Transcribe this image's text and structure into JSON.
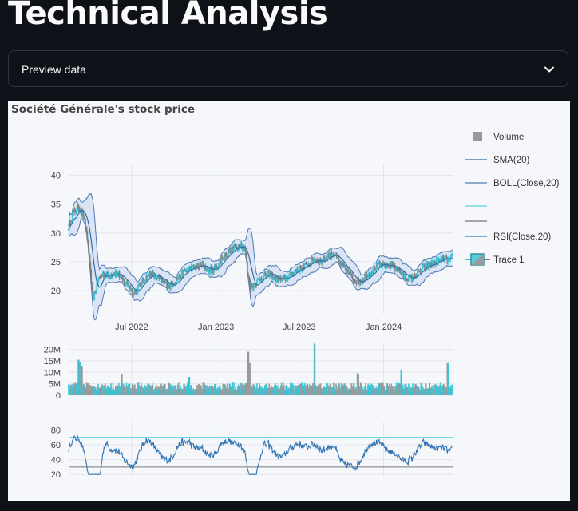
{
  "page": {
    "title": "Technical Analysis",
    "expander": {
      "label": "Preview data",
      "icon": "chevron-down-icon"
    }
  },
  "chart_data": {
    "type": "line",
    "title": "Société Générale's stock price",
    "legend_position": "right",
    "legend": [
      "Volume",
      "SMA(20)",
      "BOLL(Close,20)",
      "",
      "",
      "RSI(Close,20)",
      "Trace 1"
    ],
    "colors": {
      "candles": "#3ec5d6",
      "sma": "#2f6fa8",
      "bollinger_band": "#4f7ab5",
      "bollinger_fill": "#d4def2",
      "volume": "#999999",
      "rsi": "#2f74b5",
      "rsi_upper": "#57d4e3",
      "rsi_lower": "#777777"
    },
    "price_panel": {
      "x_ticks": [
        "Jul 2022",
        "Jan 2023",
        "Jul 2023",
        "Jan 2024"
      ],
      "y_ticks": [
        20,
        25,
        30,
        35,
        40
      ],
      "ylim": [
        16,
        42
      ],
      "close_points": [
        {
          "date": "2022-02-14",
          "value": 31.0
        },
        {
          "date": "2022-02-25",
          "value": 33.5
        },
        {
          "date": "2022-03-08",
          "value": 34.5
        },
        {
          "date": "2022-03-17",
          "value": 33.2
        },
        {
          "date": "2022-03-25",
          "value": 30.5
        },
        {
          "date": "2022-04-01",
          "value": 24.5
        },
        {
          "date": "2022-04-08",
          "value": 18.5
        },
        {
          "date": "2022-04-20",
          "value": 22.0
        },
        {
          "date": "2022-05-02",
          "value": 23.0
        },
        {
          "date": "2022-05-13",
          "value": 22.5
        },
        {
          "date": "2022-05-24",
          "value": 23.2
        },
        {
          "date": "2022-06-03",
          "value": 22.8
        },
        {
          "date": "2022-06-14",
          "value": 21.5
        },
        {
          "date": "2022-06-24",
          "value": 21.0
        },
        {
          "date": "2022-07-06",
          "value": 19.5
        },
        {
          "date": "2022-07-15",
          "value": 20.5
        },
        {
          "date": "2022-07-29",
          "value": 22.0
        },
        {
          "date": "2022-08-12",
          "value": 23.0
        },
        {
          "date": "2022-08-26",
          "value": 22.2
        },
        {
          "date": "2022-09-09",
          "value": 21.5
        },
        {
          "date": "2022-09-23",
          "value": 20.8
        },
        {
          "date": "2022-10-07",
          "value": 22.0
        },
        {
          "date": "2022-10-21",
          "value": 23.0
        },
        {
          "date": "2022-11-04",
          "value": 23.8
        },
        {
          "date": "2022-11-18",
          "value": 24.0
        },
        {
          "date": "2022-12-02",
          "value": 24.5
        },
        {
          "date": "2022-12-16",
          "value": 23.5
        },
        {
          "date": "2023-01-02",
          "value": 24.0
        },
        {
          "date": "2023-01-13",
          "value": 25.5
        },
        {
          "date": "2023-01-27",
          "value": 26.5
        },
        {
          "date": "2023-02-10",
          "value": 27.5
        },
        {
          "date": "2023-02-24",
          "value": 28.0
        },
        {
          "date": "2023-03-06",
          "value": 27.0
        },
        {
          "date": "2023-03-10",
          "value": 23.5
        },
        {
          "date": "2023-03-17",
          "value": 20.5
        },
        {
          "date": "2023-03-31",
          "value": 21.5
        },
        {
          "date": "2023-04-14",
          "value": 22.5
        },
        {
          "date": "2023-04-28",
          "value": 23.0
        },
        {
          "date": "2023-05-12",
          "value": 22.0
        },
        {
          "date": "2023-05-26",
          "value": 21.8
        },
        {
          "date": "2023-06-09",
          "value": 22.5
        },
        {
          "date": "2023-06-23",
          "value": 23.5
        },
        {
          "date": "2023-07-07",
          "value": 24.0
        },
        {
          "date": "2023-07-21",
          "value": 24.5
        },
        {
          "date": "2023-08-04",
          "value": 25.5
        },
        {
          "date": "2023-08-18",
          "value": 25.0
        },
        {
          "date": "2023-09-01",
          "value": 26.0
        },
        {
          "date": "2023-09-15",
          "value": 26.5
        },
        {
          "date": "2023-09-29",
          "value": 24.5
        },
        {
          "date": "2023-10-13",
          "value": 23.5
        },
        {
          "date": "2023-10-27",
          "value": 22.0
        },
        {
          "date": "2023-11-10",
          "value": 21.5
        },
        {
          "date": "2023-11-24",
          "value": 22.5
        },
        {
          "date": "2023-12-08",
          "value": 23.5
        },
        {
          "date": "2023-12-22",
          "value": 24.5
        },
        {
          "date": "2024-01-05",
          "value": 24.2
        },
        {
          "date": "2024-01-19",
          "value": 24.5
        },
        {
          "date": "2024-02-02",
          "value": 23.5
        },
        {
          "date": "2024-02-16",
          "value": 22.5
        },
        {
          "date": "2024-03-01",
          "value": 22.0
        },
        {
          "date": "2024-03-15",
          "value": 23.0
        },
        {
          "date": "2024-03-29",
          "value": 24.0
        },
        {
          "date": "2024-04-12",
          "value": 24.5
        },
        {
          "date": "2024-04-26",
          "value": 25.0
        },
        {
          "date": "2024-05-10",
          "value": 25.5
        },
        {
          "date": "2024-05-24",
          "value": 25.2
        },
        {
          "date": "2024-05-31",
          "value": 26.0
        }
      ]
    },
    "volume_panel": {
      "y_ticks": [
        "0",
        "5M",
        "10M",
        "15M",
        "20M"
      ],
      "ylim": [
        0,
        23000000
      ]
    },
    "rsi_panel": {
      "y_ticks": [
        20,
        40,
        60,
        80
      ],
      "ylim": [
        17,
        90
      ],
      "upper_level": 70,
      "lower_level": 30
    }
  }
}
